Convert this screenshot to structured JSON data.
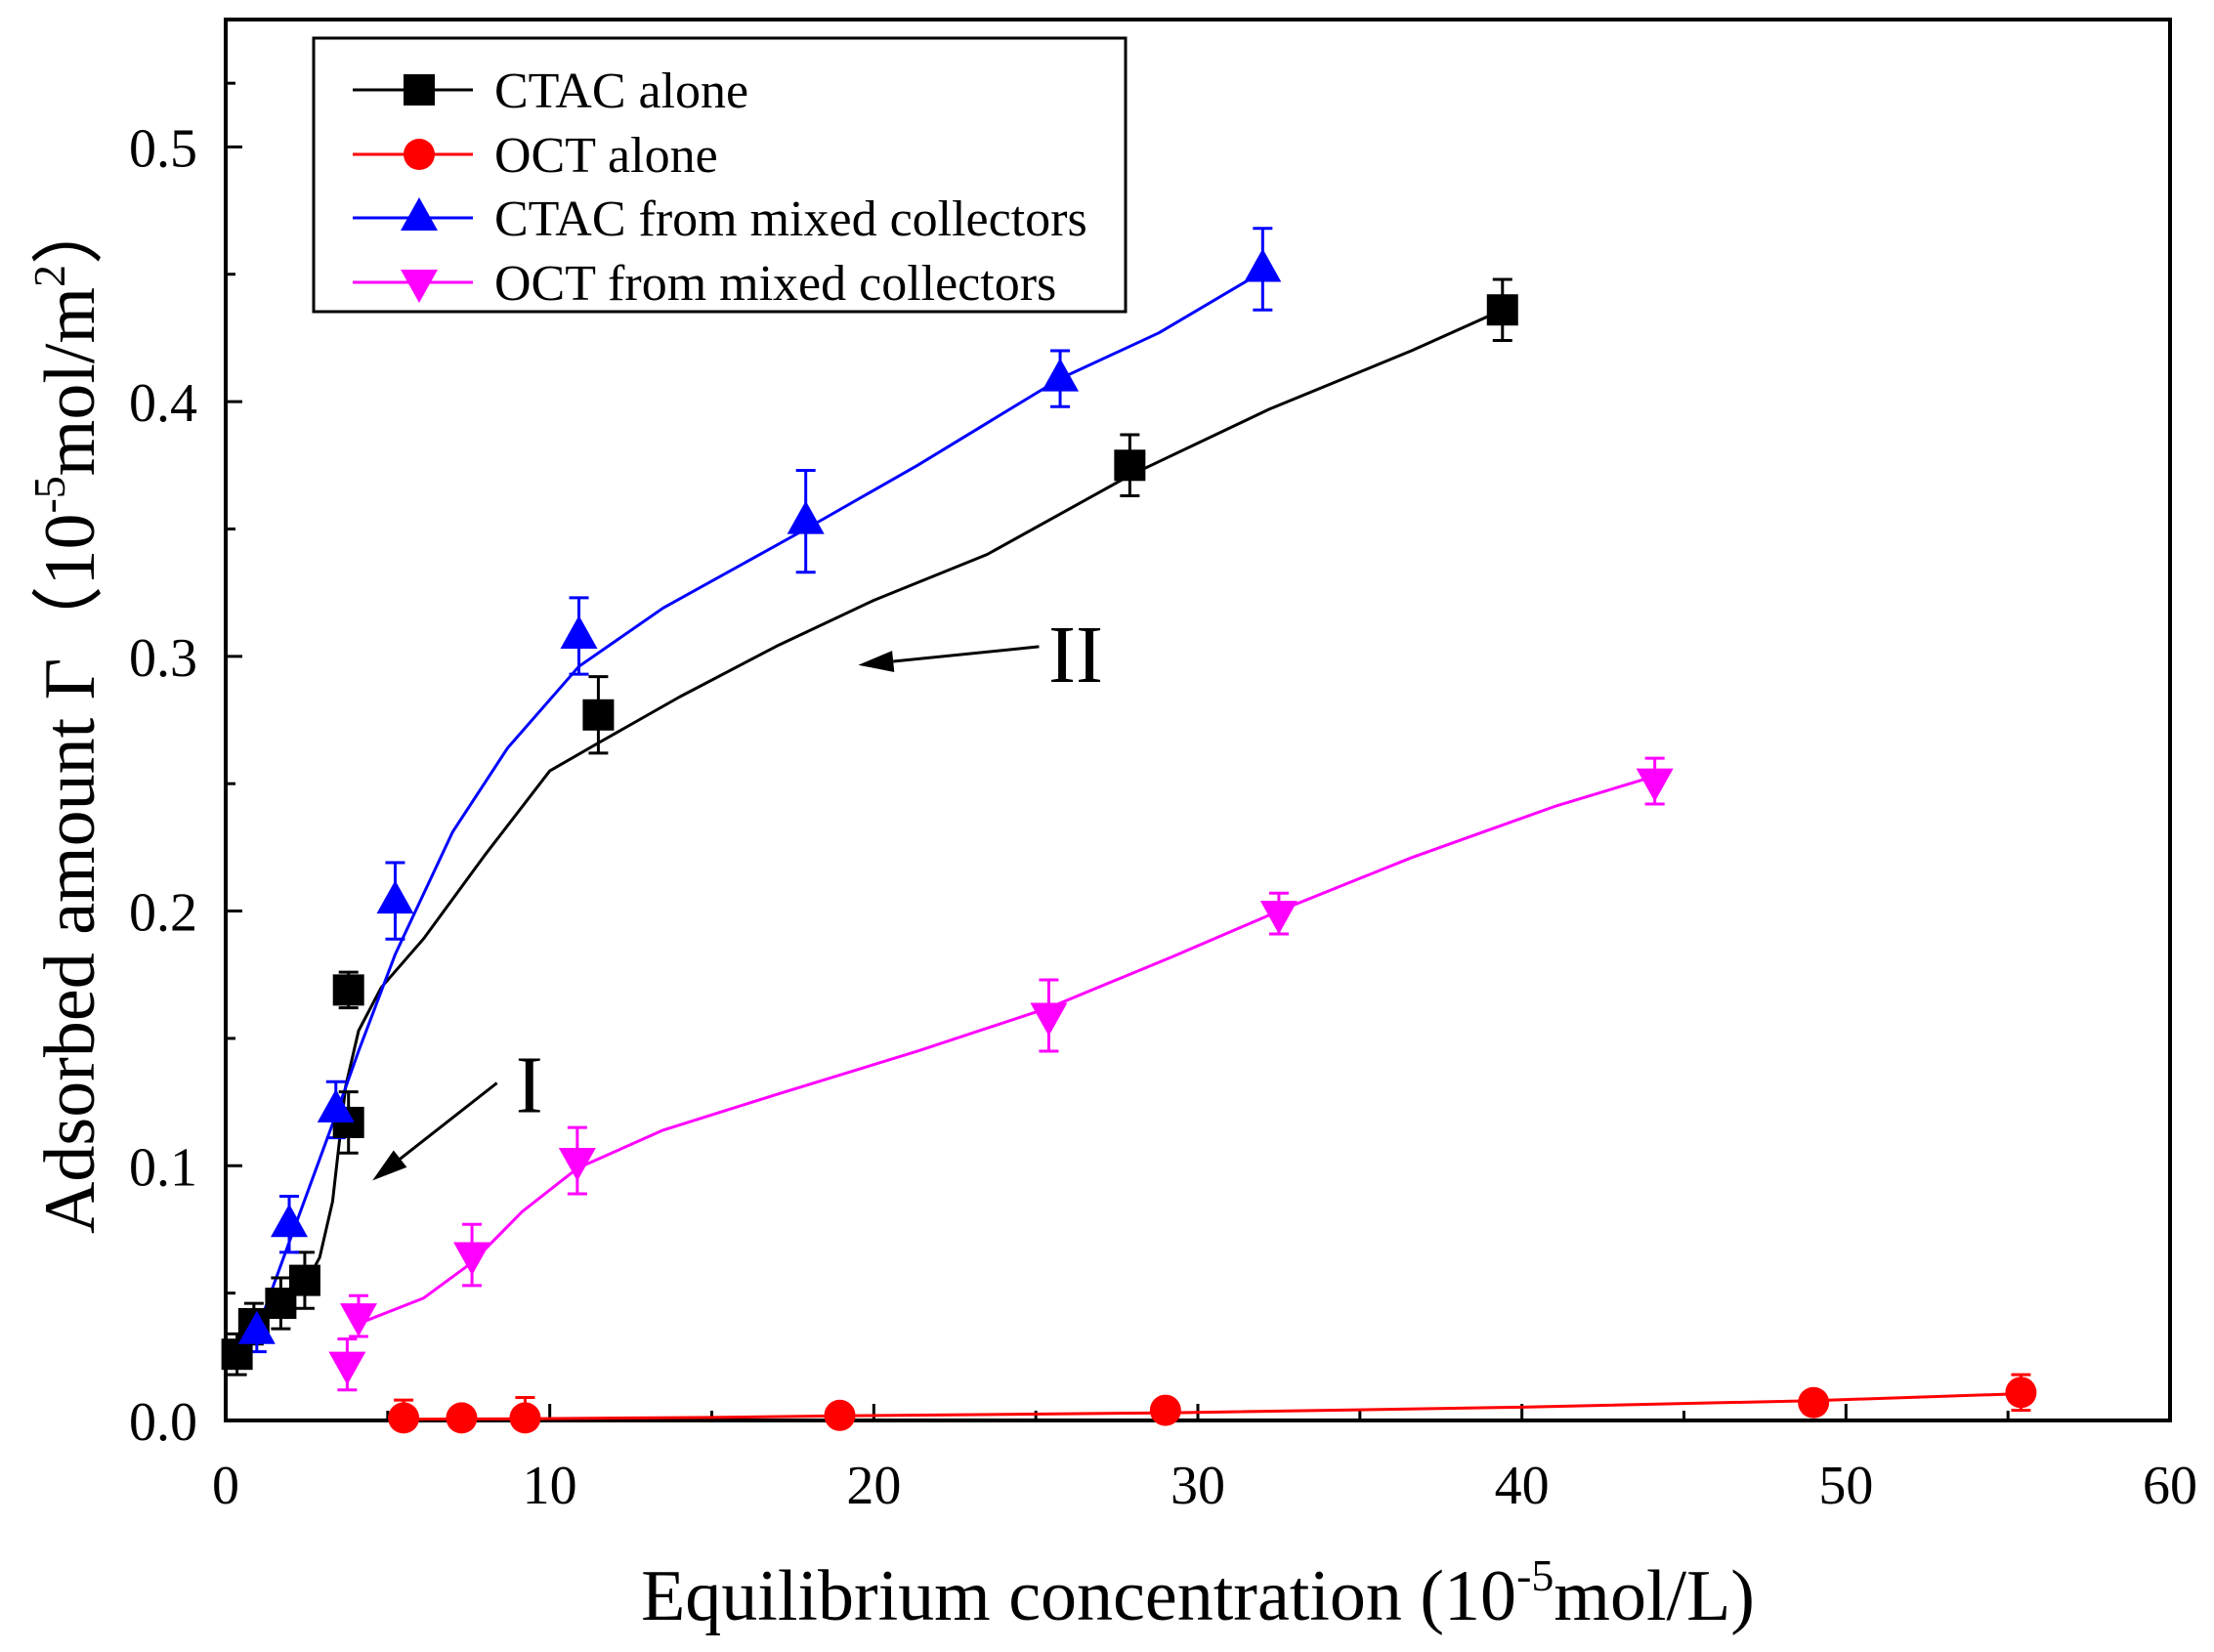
{
  "chart_data": {
    "type": "scatter",
    "title": "",
    "xlabel": {
      "text": "Equilibrium concentration (10",
      "sup": "-5",
      "tail": "mol/L)"
    },
    "ylabel": {
      "text": "Adsorbed amount Γ（10",
      "sup": "-5",
      "mid": "mol/m",
      "sup2": "2",
      "tail": "）"
    },
    "xlim": [
      0,
      60
    ],
    "ylim": [
      0,
      0.55
    ],
    "x_ticks": [
      "0",
      "10",
      "20",
      "30",
      "40",
      "50",
      "60"
    ],
    "y_ticks": [
      "0.0",
      "0.1",
      "0.2",
      "0.3",
      "0.4",
      "0.5"
    ],
    "series": [
      {
        "name": "CTAC alone",
        "color": "#000000",
        "marker": "square",
        "x": [
          0.35,
          0.87,
          1.7,
          2.44,
          3.79,
          3.79,
          11.5,
          27.9,
          39.4
        ],
        "y": [
          0.026,
          0.038,
          0.046,
          0.055,
          0.117,
          0.169,
          0.277,
          0.375,
          0.436
        ],
        "err": [
          0.008,
          0.008,
          0.01,
          0.011,
          0.012,
          0.007,
          0.015,
          0.012,
          0.012
        ],
        "fit_x": [
          0.35,
          0.87,
          1.7,
          2.44,
          2.9,
          3.3,
          3.7,
          4.1,
          4.8,
          6.1,
          8,
          10,
          11.5,
          14,
          17,
          20,
          23.5,
          27.9,
          32.2,
          36.6,
          39.4
        ],
        "fit_y": [
          0.026,
          0.036,
          0.045,
          0.053,
          0.064,
          0.086,
          0.131,
          0.153,
          0.17,
          0.189,
          0.222,
          0.255,
          0.266,
          0.284,
          0.304,
          0.322,
          0.34,
          0.371,
          0.397,
          0.42,
          0.436
        ]
      },
      {
        "name": "OCT alone",
        "color": "#ff0000",
        "marker": "circle",
        "x": [
          5.49,
          7.28,
          9.24,
          18.95,
          29.0,
          49.0,
          55.4
        ],
        "y": [
          0.001,
          0.001,
          0.001,
          0.002,
          0.004,
          0.007,
          0.011
        ],
        "err": [
          0.007,
          0.004,
          0.008,
          0.002,
          0.002,
          0.002,
          0.007
        ],
        "fit_x": [
          5.49,
          9.24,
          15,
          18.95,
          29,
          40,
          49,
          55.4
        ],
        "fit_y": [
          0.0005,
          0.0007,
          0.0012,
          0.0018,
          0.003,
          0.0052,
          0.0078,
          0.0105
        ]
      },
      {
        "name": "CTAC from mixed collectors",
        "color": "#0000ff",
        "marker": "triangle-up",
        "x": [
          0.96,
          1.96,
          3.4,
          5.23,
          10.9,
          17.9,
          25.75,
          32.0
        ],
        "y": [
          0.035,
          0.077,
          0.122,
          0.204,
          0.308,
          0.353,
          0.409,
          0.452
        ],
        "err": [
          0.008,
          0.011,
          0.011,
          0.015,
          0.015,
          0.02,
          0.011,
          0.016
        ],
        "fit_x": [
          0.96,
          1.96,
          3.4,
          4.1,
          5.23,
          7.0,
          8.7,
          10.9,
          13.5,
          17.9,
          21.35,
          25.75,
          28.8,
          32.0
        ],
        "fit_y": [
          0.035,
          0.07,
          0.12,
          0.145,
          0.183,
          0.231,
          0.264,
          0.296,
          0.319,
          0.35,
          0.375,
          0.409,
          0.427,
          0.451
        ]
      },
      {
        "name": "OCT from mixed collectors",
        "color": "#ff00ff",
        "marker": "triangle-down",
        "x": [
          3.75,
          4.1,
          7.6,
          10.85,
          25.4,
          32.5,
          44.1
        ],
        "y": [
          0.022,
          0.041,
          0.065,
          0.102,
          0.159,
          0.199,
          0.251
        ],
        "err": [
          0.01,
          0.008,
          0.012,
          0.013,
          0.014,
          0.008,
          0.009
        ],
        "fit_x": [
          4.1,
          6.1,
          7.6,
          9.15,
          10.85,
          13.5,
          17,
          21.35,
          25.4,
          29.2,
          32.5,
          36.6,
          41,
          44.1
        ],
        "fit_y": [
          0.038,
          0.048,
          0.062,
          0.082,
          0.099,
          0.114,
          0.128,
          0.145,
          0.162,
          0.182,
          0.2,
          0.221,
          0.241,
          0.253
        ]
      }
    ],
    "annotations": [
      {
        "text": "I"
      },
      {
        "text": "II"
      }
    ]
  }
}
